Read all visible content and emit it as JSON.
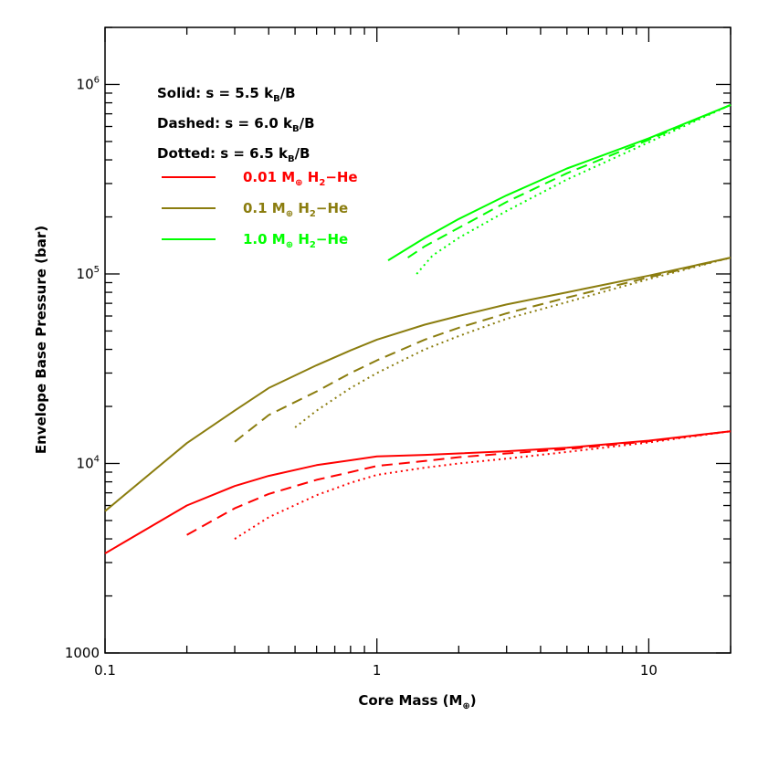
{
  "chart_data": {
    "type": "line",
    "x_scale": "log",
    "y_scale": "log",
    "xlim": [
      0.1,
      20
    ],
    "ylim": [
      1000,
      2000000
    ],
    "xlabel": {
      "pre": "Core Mass (M",
      "sub": "⊕",
      "post": ")"
    },
    "ylabel": "Envelope Base Pressure (bar)",
    "x_tick_labels": [
      {
        "value": 0.1,
        "label": "0.1"
      },
      {
        "value": 1,
        "label": "1"
      },
      {
        "value": 10,
        "label": "10"
      }
    ],
    "y_tick_labels": [
      {
        "value": 1000,
        "base": "1000",
        "exp": ""
      },
      {
        "value": 10000,
        "base": "10",
        "exp": "4"
      },
      {
        "value": 100000,
        "base": "10",
        "exp": "5"
      },
      {
        "value": 1000000,
        "base": "10",
        "exp": "6"
      }
    ],
    "legend": {
      "placement": "top-left",
      "style_notes": [
        {
          "text": "Solid: s = 5.5 k",
          "sub": "B",
          "post": "/B"
        },
        {
          "text": "Dashed: s = 6.0 k",
          "sub": "B",
          "post": "/B"
        },
        {
          "text": "Dotted: s = 6.5 k",
          "sub": "B",
          "post": "/B"
        }
      ],
      "entries": [
        {
          "mass": "0.01 M",
          "planet_sub": "⊕",
          "gas": " H",
          "gas_sub": "2",
          "gas_post": "−He",
          "color": "#ff0000"
        },
        {
          "mass": "0.1 M",
          "planet_sub": "⊕",
          "gas": " H",
          "gas_sub": "2",
          "gas_post": "−He",
          "color": "#8b7d0f"
        },
        {
          "mass": "1.0 M",
          "planet_sub": "⊕",
          "gas": " H",
          "gas_sub": "2",
          "gas_post": "−He",
          "color": "#00ff00"
        }
      ]
    },
    "series": [
      {
        "envelope": "0.01",
        "entropy": "5.5",
        "style": "solid",
        "color": "#ff0000",
        "x": [
          0.1,
          0.2,
          0.3,
          0.4,
          0.6,
          0.8,
          1.0,
          1.5,
          2,
          3,
          5,
          10,
          20
        ],
        "y": [
          3350,
          6000,
          7600,
          8600,
          9800,
          10400,
          10900,
          11100,
          11300,
          11600,
          12100,
          13200,
          14800
        ]
      },
      {
        "envelope": "0.01",
        "entropy": "6.0",
        "style": "dashed",
        "color": "#ff0000",
        "x": [
          0.2,
          0.3,
          0.4,
          0.6,
          0.8,
          1.0,
          1.5,
          2,
          3,
          5,
          10,
          20
        ],
        "y": [
          4200,
          5800,
          6900,
          8200,
          9000,
          9700,
          10300,
          10800,
          11300,
          11900,
          13100,
          14800
        ]
      },
      {
        "envelope": "0.01",
        "entropy": "6.5",
        "style": "dotted",
        "color": "#ff0000",
        "x": [
          0.3,
          0.4,
          0.6,
          0.8,
          1.0,
          1.5,
          2,
          3,
          5,
          10,
          20
        ],
        "y": [
          4000,
          5200,
          6800,
          7900,
          8700,
          9500,
          10000,
          10600,
          11500,
          12900,
          14800
        ]
      },
      {
        "envelope": "0.1",
        "entropy": "5.5",
        "style": "solid",
        "color": "#8b7d0f",
        "x": [
          0.1,
          0.2,
          0.3,
          0.4,
          0.6,
          0.8,
          1.0,
          1.5,
          2,
          3,
          5,
          10,
          20
        ],
        "y": [
          5600,
          12800,
          19000,
          25000,
          33000,
          39500,
          45000,
          54000,
          60000,
          69000,
          80000,
          98000,
          122000
        ]
      },
      {
        "envelope": "0.1",
        "entropy": "6.0",
        "style": "dashed",
        "color": "#8b7d0f",
        "x": [
          0.3,
          0.4,
          0.6,
          0.8,
          1.0,
          1.5,
          2,
          3,
          5,
          10,
          20
        ],
        "y": [
          13000,
          18000,
          24000,
          30000,
          35000,
          45000,
          52000,
          62000,
          75000,
          96000,
          122000
        ]
      },
      {
        "envelope": "0.1",
        "entropy": "6.5",
        "style": "dotted",
        "color": "#8b7d0f",
        "x": [
          0.5,
          0.6,
          0.8,
          1.0,
          1.5,
          2,
          3,
          5,
          10,
          20
        ],
        "y": [
          15500,
          19000,
          25000,
          30000,
          40000,
          47000,
          58000,
          71000,
          94000,
          122000
        ]
      },
      {
        "envelope": "1.0",
        "entropy": "5.5",
        "style": "solid",
        "color": "#00ff00",
        "x": [
          1.1,
          1.5,
          2,
          3,
          5,
          10,
          20
        ],
        "y": [
          118000,
          155000,
          195000,
          260000,
          360000,
          520000,
          780000
        ]
      },
      {
        "envelope": "1.0",
        "entropy": "6.0",
        "style": "dashed",
        "color": "#00ff00",
        "x": [
          1.3,
          1.5,
          2,
          3,
          5,
          10,
          20
        ],
        "y": [
          122000,
          140000,
          175000,
          240000,
          340000,
          510000,
          780000
        ]
      },
      {
        "envelope": "1.0",
        "entropy": "6.5",
        "style": "dotted",
        "color": "#00ff00",
        "x": [
          1.4,
          1.6,
          2,
          3,
          5,
          10,
          20
        ],
        "y": [
          100000,
          125000,
          155000,
          215000,
          315000,
          495000,
          780000
        ]
      }
    ]
  }
}
